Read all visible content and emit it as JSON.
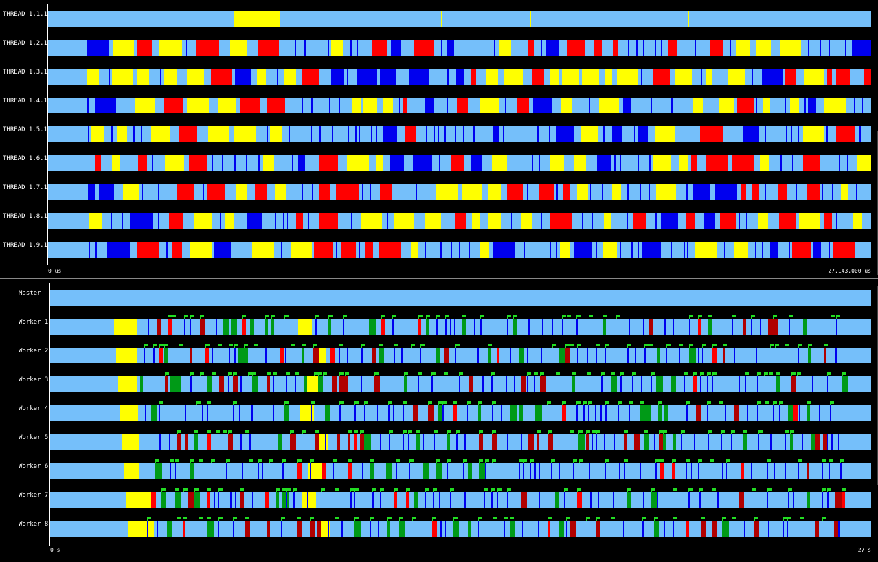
{
  "top_view": {
    "rows": [
      "THREAD 1.1.1",
      "THREAD 1.2.1",
      "THREAD 1.3.1",
      "THREAD 1.4.1",
      "THREAD 1.5.1",
      "THREAD 1.6.1",
      "THREAD 1.7.1",
      "THREAD 1.8.1",
      "THREAD 1.9.1"
    ],
    "axis_start": "0 us",
    "axis_end": "27,143,000 us"
  },
  "bottom_view": {
    "rows": [
      "Master",
      "Worker 1",
      "Worker 2",
      "Worker 3",
      "Worker 4",
      "Worker 5",
      "Worker 6",
      "Worker 7",
      "Worker 8"
    ],
    "axis_start": "0 s",
    "axis_end": "27 s"
  },
  "colors": {
    "background": "#000000",
    "idle": "#75bffa",
    "running": "#0000ee",
    "sync": "#ff0000",
    "sched": "#ffff00",
    "user": "#009a17",
    "dark_red": "#b00000",
    "flag": "#22dd22"
  }
}
